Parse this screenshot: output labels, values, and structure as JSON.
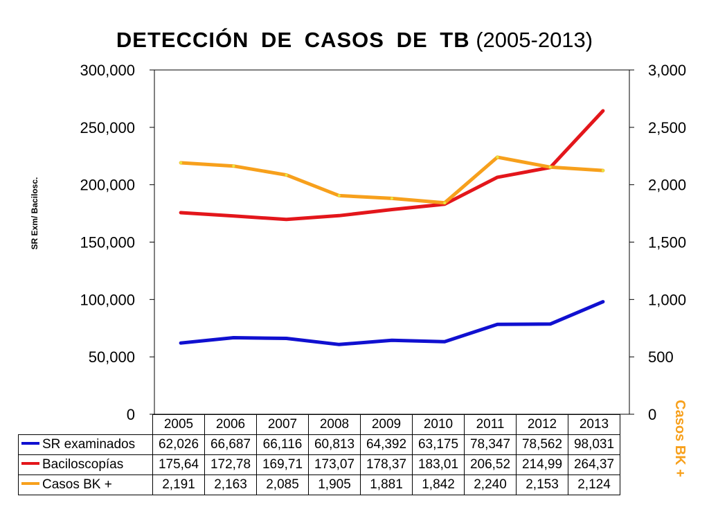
{
  "title_main": "DETECCIÓN  DE  CASOS  DE  TB",
  "title_years": "(2005-2013)",
  "chart_data": {
    "type": "line",
    "title": "DETECCIÓN DE CASOS DE TB (2005-2013)",
    "categories": [
      "2005",
      "2006",
      "2007",
      "2008",
      "2009",
      "2010",
      "2011",
      "2012",
      "2013"
    ],
    "y_axis_label": "SR Exm/ Bacilosc.",
    "y2_axis_label": "Casos BK +",
    "ylim": [
      0,
      300000
    ],
    "y2lim": [
      0,
      3000
    ],
    "yticks": [
      "0",
      "50,000",
      "100,000",
      "150,000",
      "200,000",
      "250,000",
      "300,000"
    ],
    "y2ticks": [
      "0",
      "500",
      "1,000",
      "1,500",
      "2,000",
      "2,500",
      "3,000"
    ],
    "legend_placement": "data table below plot",
    "series": [
      {
        "name": "SR examinados",
        "color": "#1010d0",
        "axis": "left",
        "values": [
          62026,
          66687,
          66116,
          60813,
          64392,
          63175,
          78347,
          78562,
          98031
        ],
        "labels": [
          "62,026",
          "66,687",
          "66,116",
          "60,813",
          "64,392",
          "63,175",
          "78,347",
          "78,562",
          "98,031"
        ]
      },
      {
        "name": "Baciloscopías",
        "color": "#e3161b",
        "axis": "left",
        "values": [
          175640,
          172780,
          169710,
          173070,
          178370,
          183010,
          206520,
          214990,
          264370
        ],
        "labels": [
          "175,64",
          "172,78",
          "169,71",
          "173,07",
          "178,37",
          "183,01",
          "206,52",
          "214,99",
          "264,37"
        ]
      },
      {
        "name": "Casos BK +",
        "color": "#f7a01c",
        "axis": "right",
        "values": [
          2191,
          2163,
          2085,
          1905,
          1881,
          1842,
          2240,
          2153,
          2124
        ],
        "labels": [
          "2,191",
          "2,163",
          "2,085",
          "1,905",
          "1,881",
          "1,842",
          "2,240",
          "2,153",
          "2,124"
        ]
      }
    ]
  }
}
